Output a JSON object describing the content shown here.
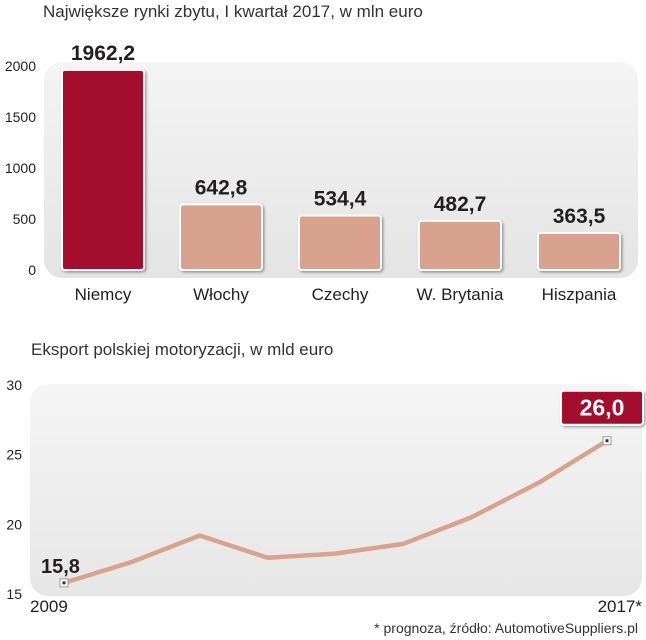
{
  "chart_data": [
    {
      "type": "bar",
      "title": "Największe rynki zbytu, I kwartał 2017, w mln euro",
      "categories": [
        "Niemcy",
        "Włochy",
        "Czechy",
        "W. Brytania",
        "Hiszpania"
      ],
      "values": [
        1962.2,
        642.8,
        534.4,
        482.7,
        363.5
      ],
      "value_labels": [
        "1962,2",
        "642,8",
        "534,4",
        "482,7",
        "363,5"
      ],
      "ylim": [
        0,
        2000
      ],
      "yticks": [
        0,
        500,
        1000,
        1500,
        2000
      ],
      "colors": {
        "highlight": "#a30f2d",
        "bar": "#d9a28e"
      }
    },
    {
      "type": "line",
      "title": "Eksport polskiej motoryzacji, w mld euro",
      "x": [
        2009,
        2010,
        2011,
        2012,
        2013,
        2014,
        2015,
        2016,
        2017
      ],
      "values": [
        15.8,
        17.3,
        19.2,
        17.6,
        17.9,
        18.6,
        20.5,
        23.0,
        26.0
      ],
      "start_label": "15,8",
      "end_label": "26,0",
      "x_start_label": "2009",
      "x_end_label": "2017*",
      "ylim": [
        15,
        30
      ],
      "yticks": [
        15,
        20,
        25,
        30
      ],
      "colors": {
        "line": "#d9a28e",
        "badge": "#a30f2d"
      }
    }
  ],
  "footer": "* prognoza, źródło: AutomotiveSuppliers.pl"
}
